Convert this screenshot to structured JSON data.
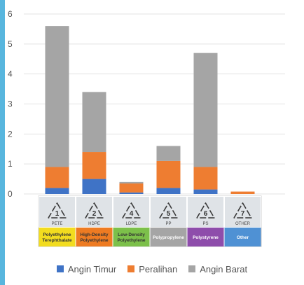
{
  "chart_data": {
    "type": "bar",
    "stacked": true,
    "categories": [
      {
        "code": "PETE",
        "number": "1",
        "name": [
          "Polyethylene",
          "Terephthalate"
        ],
        "color": "#f2dc1f",
        "text_color": "#333333"
      },
      {
        "code": "HDPE",
        "number": "2",
        "name": [
          "High-Density",
          "Polyethylene"
        ],
        "color": "#ee7b22",
        "text_color": "#333333"
      },
      {
        "code": "LDPE",
        "number": "4",
        "name": [
          "Low-Density",
          "Polyethylene"
        ],
        "color": "#7cc04a",
        "text_color": "#333333"
      },
      {
        "code": "PP",
        "number": "5",
        "name": [
          "Polypropylene"
        ],
        "color": "#a5a5a5",
        "text_color": "#ffffff"
      },
      {
        "code": "PS",
        "number": "6",
        "name": [
          "Polystyrene"
        ],
        "color": "#8e4dab",
        "text_color": "#ffffff"
      },
      {
        "code": "OTHER",
        "number": "7",
        "name": [
          "Other"
        ],
        "color": "#4f91d4",
        "text_color": "#ffffff"
      }
    ],
    "series": [
      {
        "name": "Angin Timur",
        "color": "#3f73c6",
        "values": [
          0.2,
          0.5,
          0.05,
          0.2,
          0.15,
          0.0
        ]
      },
      {
        "name": "Peralihan",
        "color": "#ee7d31",
        "values": [
          0.7,
          0.9,
          0.3,
          0.9,
          0.75,
          0.08
        ]
      },
      {
        "name": "Angin Barat",
        "color": "#a5a5a5",
        "values": [
          4.7,
          2.0,
          0.05,
          0.5,
          3.8,
          0.0
        ]
      }
    ],
    "yticks": [
      "0",
      "1",
      "2",
      "3",
      "4",
      "5",
      "6"
    ],
    "ylim": [
      0,
      6
    ],
    "grid": true,
    "legend_position": "bottom"
  }
}
